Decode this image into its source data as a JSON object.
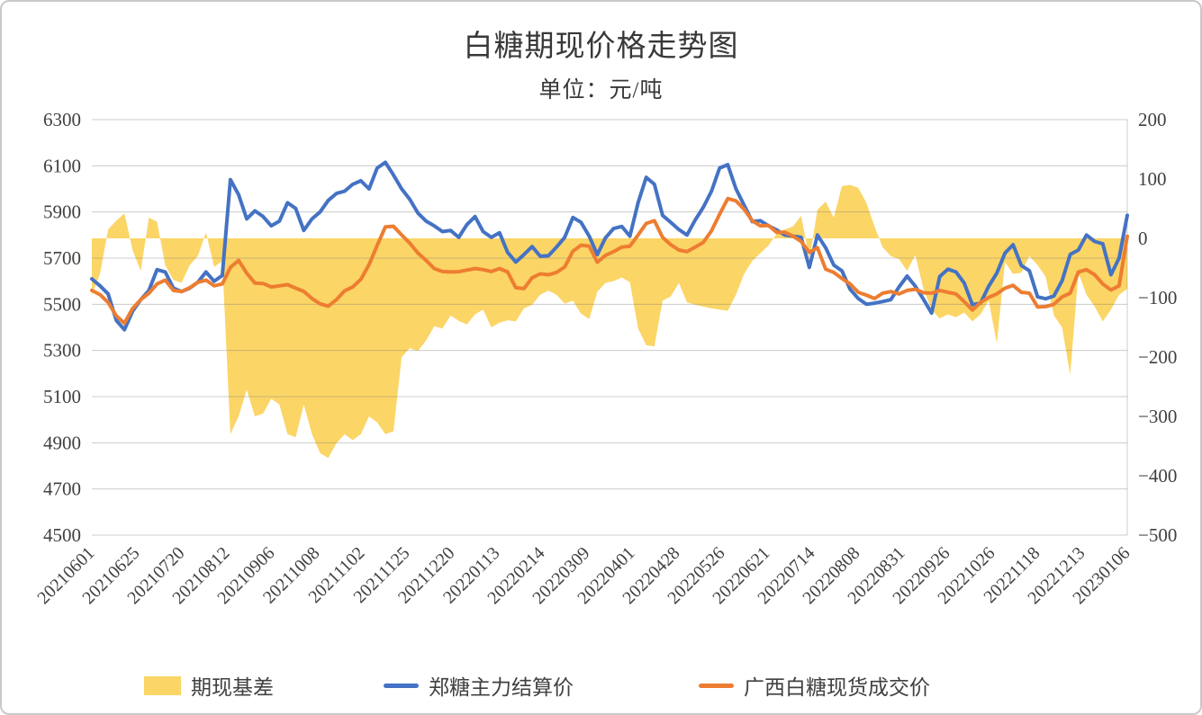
{
  "title": "白糖期现价格走势图",
  "subtitle": "单位：元/吨",
  "colors": {
    "basis_area": "#FBD566",
    "futures_line": "#4472C4",
    "spot_line": "#ED7D31",
    "gridline": "#d9d9d9",
    "axis_text": "#404040",
    "title_text": "#383838"
  },
  "legend": [
    {
      "label": "期现基差",
      "type": "area",
      "color": "#FBD566"
    },
    {
      "label": "郑糖主力结算价",
      "type": "line",
      "color": "#4472C4"
    },
    {
      "label": "广西白糖现货成交价",
      "type": "line",
      "color": "#ED7D31"
    }
  ],
  "chart_data": {
    "type": "combo",
    "title": "白糖期现价格走势图",
    "subtitle": "单位：元/吨",
    "left_axis": {
      "min": 4500,
      "max": 6300,
      "step": 200,
      "tick_labels": [
        "6300",
        "6100",
        "5900",
        "5700",
        "5500",
        "5300",
        "5100",
        "4900",
        "4700",
        "4500"
      ]
    },
    "right_axis": {
      "min": -500,
      "max": 200,
      "step": 100,
      "tick_labels": [
        "200",
        "100",
        "0",
        "−100",
        "−200",
        "−300",
        "−400",
        "−500"
      ]
    },
    "x_tick_labels": [
      "20210601",
      "20210625",
      "20210720",
      "20210812",
      "20210906",
      "20211008",
      "20211102",
      "20211125",
      "20211220",
      "20220113",
      "20220214",
      "20220309",
      "20220401",
      "20220428",
      "20220526",
      "20220621",
      "20220714",
      "20220808",
      "20220831",
      "20220926",
      "20221026",
      "20221118",
      "20221213",
      "20230106"
    ],
    "grid": true,
    "legend_position": "bottom",
    "series": [
      {
        "name": "期现基差",
        "type": "area",
        "axis": "right",
        "color": "#FBD566",
        "values": [
          -95,
          -60,
          15,
          30,
          42,
          -20,
          -55,
          35,
          28,
          -45,
          -70,
          -75,
          -45,
          -30,
          10,
          -48,
          -38,
          -330,
          -300,
          -255,
          -300,
          -295,
          -270,
          -280,
          -330,
          -335,
          -280,
          -330,
          -362,
          -370,
          -345,
          -330,
          -340,
          -330,
          -300,
          -310,
          -330,
          -325,
          -200,
          -185,
          -190,
          -172,
          -148,
          -152,
          -130,
          -139,
          -145,
          -128,
          -120,
          -150,
          -142,
          -138,
          -140,
          -118,
          -112,
          -95,
          -88,
          -95,
          -110,
          -105,
          -127,
          -136,
          -90,
          -75,
          -72,
          -66,
          -74,
          -152,
          -180,
          -182,
          -105,
          -98,
          -75,
          -108,
          -112,
          -115,
          -118,
          -120,
          -122,
          -95,
          -60,
          -38,
          -25,
          -12,
          8,
          15,
          20,
          38,
          -35,
          48,
          62,
          35,
          88,
          90,
          85,
          60,
          20,
          -15,
          -30,
          -35,
          -55,
          -28,
          -85,
          -120,
          -135,
          -128,
          -133,
          -125,
          -140,
          -128,
          -105,
          -177,
          -40,
          -60,
          -58,
          -30,
          -45,
          -65,
          -130,
          -150,
          -230,
          -58,
          -95,
          -115,
          -140,
          -120,
          -95,
          -85
        ]
      },
      {
        "name": "郑糖主力结算价",
        "type": "line",
        "axis": "left",
        "color": "#4472C4",
        "values": [
          5610,
          5580,
          5545,
          5430,
          5390,
          5470,
          5520,
          5560,
          5650,
          5640,
          5570,
          5555,
          5570,
          5595,
          5640,
          5600,
          5625,
          6040,
          5975,
          5870,
          5905,
          5880,
          5840,
          5860,
          5940,
          5915,
          5820,
          5870,
          5900,
          5950,
          5980,
          5990,
          6020,
          6035,
          6000,
          6090,
          6115,
          6060,
          6000,
          5955,
          5895,
          5860,
          5840,
          5815,
          5820,
          5790,
          5845,
          5880,
          5815,
          5790,
          5810,
          5725,
          5683,
          5715,
          5750,
          5708,
          5710,
          5748,
          5790,
          5876,
          5855,
          5795,
          5715,
          5788,
          5828,
          5837,
          5795,
          5940,
          6050,
          6020,
          5885,
          5855,
          5824,
          5800,
          5865,
          5920,
          5990,
          6090,
          6105,
          6000,
          5930,
          5858,
          5862,
          5840,
          5822,
          5800,
          5795,
          5790,
          5660,
          5800,
          5745,
          5670,
          5645,
          5565,
          5525,
          5500,
          5505,
          5512,
          5520,
          5575,
          5622,
          5578,
          5522,
          5462,
          5620,
          5652,
          5640,
          5592,
          5498,
          5505,
          5578,
          5635,
          5722,
          5758,
          5668,
          5645,
          5532,
          5524,
          5536,
          5602,
          5716,
          5735,
          5800,
          5772,
          5762,
          5628,
          5700,
          5885
        ]
      },
      {
        "name": "广西白糖现货成交价",
        "type": "line",
        "axis": "left",
        "color": "#ED7D31",
        "values": [
          5560,
          5542,
          5508,
          5450,
          5418,
          5482,
          5520,
          5548,
          5588,
          5605,
          5560,
          5555,
          5572,
          5595,
          5605,
          5580,
          5588,
          5660,
          5690,
          5635,
          5592,
          5590,
          5575,
          5580,
          5585,
          5570,
          5556,
          5525,
          5502,
          5492,
          5520,
          5558,
          5575,
          5608,
          5672,
          5755,
          5835,
          5838,
          5800,
          5765,
          5722,
          5690,
          5655,
          5642,
          5640,
          5641,
          5648,
          5655,
          5650,
          5642,
          5655,
          5640,
          5572,
          5568,
          5615,
          5632,
          5628,
          5638,
          5662,
          5730,
          5756,
          5752,
          5682,
          5712,
          5728,
          5748,
          5752,
          5800,
          5850,
          5862,
          5790,
          5758,
          5735,
          5728,
          5748,
          5768,
          5818,
          5890,
          5958,
          5948,
          5912,
          5862,
          5840,
          5842,
          5812,
          5812,
          5795,
          5772,
          5725,
          5745,
          5652,
          5638,
          5612,
          5588,
          5552,
          5540,
          5525,
          5548,
          5555,
          5545,
          5560,
          5565,
          5550,
          5548,
          5560,
          5552,
          5545,
          5512,
          5475,
          5508,
          5530,
          5545,
          5570,
          5582,
          5552,
          5548,
          5488,
          5490,
          5500,
          5532,
          5548,
          5640,
          5650,
          5628,
          5588,
          5562,
          5580,
          5795
        ]
      }
    ]
  }
}
